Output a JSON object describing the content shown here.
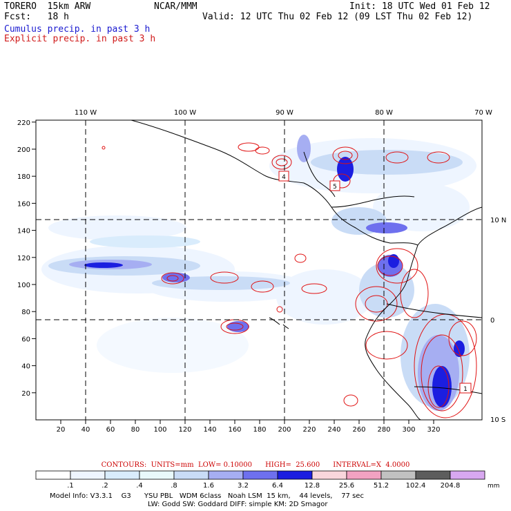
{
  "header": {
    "model": "TORERO  15km ARW",
    "center": "NCAR/MMM",
    "init": "Init: 18 UTC Wed 01 Feb 12",
    "fcst": "Fcst:   18 h",
    "valid": "Valid: 12 UTC Thu 02 Feb 12 (09 LST Thu 02 Feb 12)",
    "field1": "Cumulus precip. in past 3 h",
    "field2": "Explicit precip. in past 3 h"
  },
  "axes": {
    "lon_labels": [
      "110 W",
      "100 W",
      "90 W",
      "80 W",
      "70 W"
    ],
    "lat_labels": [
      "10 N",
      "0",
      "10 S"
    ],
    "x_ticks": [
      "20",
      "40",
      "60",
      "80",
      "100",
      "120",
      "140",
      "160",
      "180",
      "200",
      "220",
      "240",
      "260",
      "280",
      "300",
      "320"
    ],
    "y_ticks": [
      "20",
      "40",
      "60",
      "80",
      "100",
      "120",
      "140",
      "160",
      "180",
      "200",
      "220"
    ]
  },
  "station_markers": [
    "4",
    "5",
    "1"
  ],
  "contours_caption": "CONTOURS:  UNITS=mm  LOW= 0.10000      HIGH=  25.600      INTERVAL=X  4.0000",
  "colorbar": {
    "labels": [
      ".1",
      ".2",
      ".4",
      ".8",
      "1.6",
      "3.2",
      "6.4",
      "12.8",
      "25.6",
      "51.2",
      "102.4",
      "204.8"
    ],
    "unit": "mm",
    "colors": [
      "#ffffff",
      "#eef5ff",
      "#d9ecfc",
      "#e9f9fb",
      "#c9dcf6",
      "#a6aef2",
      "#6e70ee",
      "#1b1ee0",
      "#f9d6dc",
      "#f2a2c2",
      "#c1c1c1",
      "#5d5d5d",
      "#d8a8f0"
    ]
  },
  "footer": {
    "line1": "Model Info: V3.3.1    G3      YSU PBL   WDM 6class   Noah LSM  15 km,    44 levels,    77 sec",
    "line2": "LW: Godd SW: Goddard DIFF: simple KM: 2D Smagor"
  }
}
